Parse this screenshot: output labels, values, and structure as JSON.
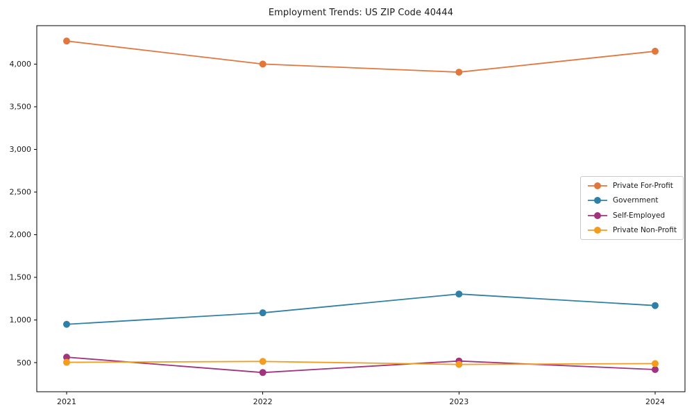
{
  "chart_data": {
    "type": "line",
    "title": "Employment Trends: US ZIP Code 40444",
    "categories": [
      "2021",
      "2022",
      "2023",
      "2024"
    ],
    "series": [
      {
        "name": "Private For-Profit",
        "color": "#e2773d",
        "values": [
          4270,
          4000,
          3905,
          4150
        ]
      },
      {
        "name": "Government",
        "color": "#2f80a6",
        "values": [
          950,
          1085,
          1305,
          1170
        ]
      },
      {
        "name": "Self-Employed",
        "color": "#a1337f",
        "values": [
          565,
          385,
          520,
          420
        ]
      },
      {
        "name": "Private Non-Profit",
        "color": "#f39c1d",
        "values": [
          505,
          515,
          480,
          490
        ]
      }
    ],
    "yticks": [
      500,
      1000,
      1500,
      2000,
      2500,
      3000,
      3500,
      4000
    ],
    "ytick_labels": [
      "500",
      "1,000",
      "1,500",
      "2,000",
      "2,500",
      "3,000",
      "3,500",
      "4,000"
    ],
    "ylim": [
      160,
      4450
    ],
    "xlabel": "",
    "ylabel": "",
    "grid": false,
    "legend_position": "center-right",
    "marker": "circle",
    "axis_color": "#000000",
    "text_color": "#1a1a1a",
    "background": "#ffffff",
    "legend_border_color": "#c9c9c9"
  }
}
